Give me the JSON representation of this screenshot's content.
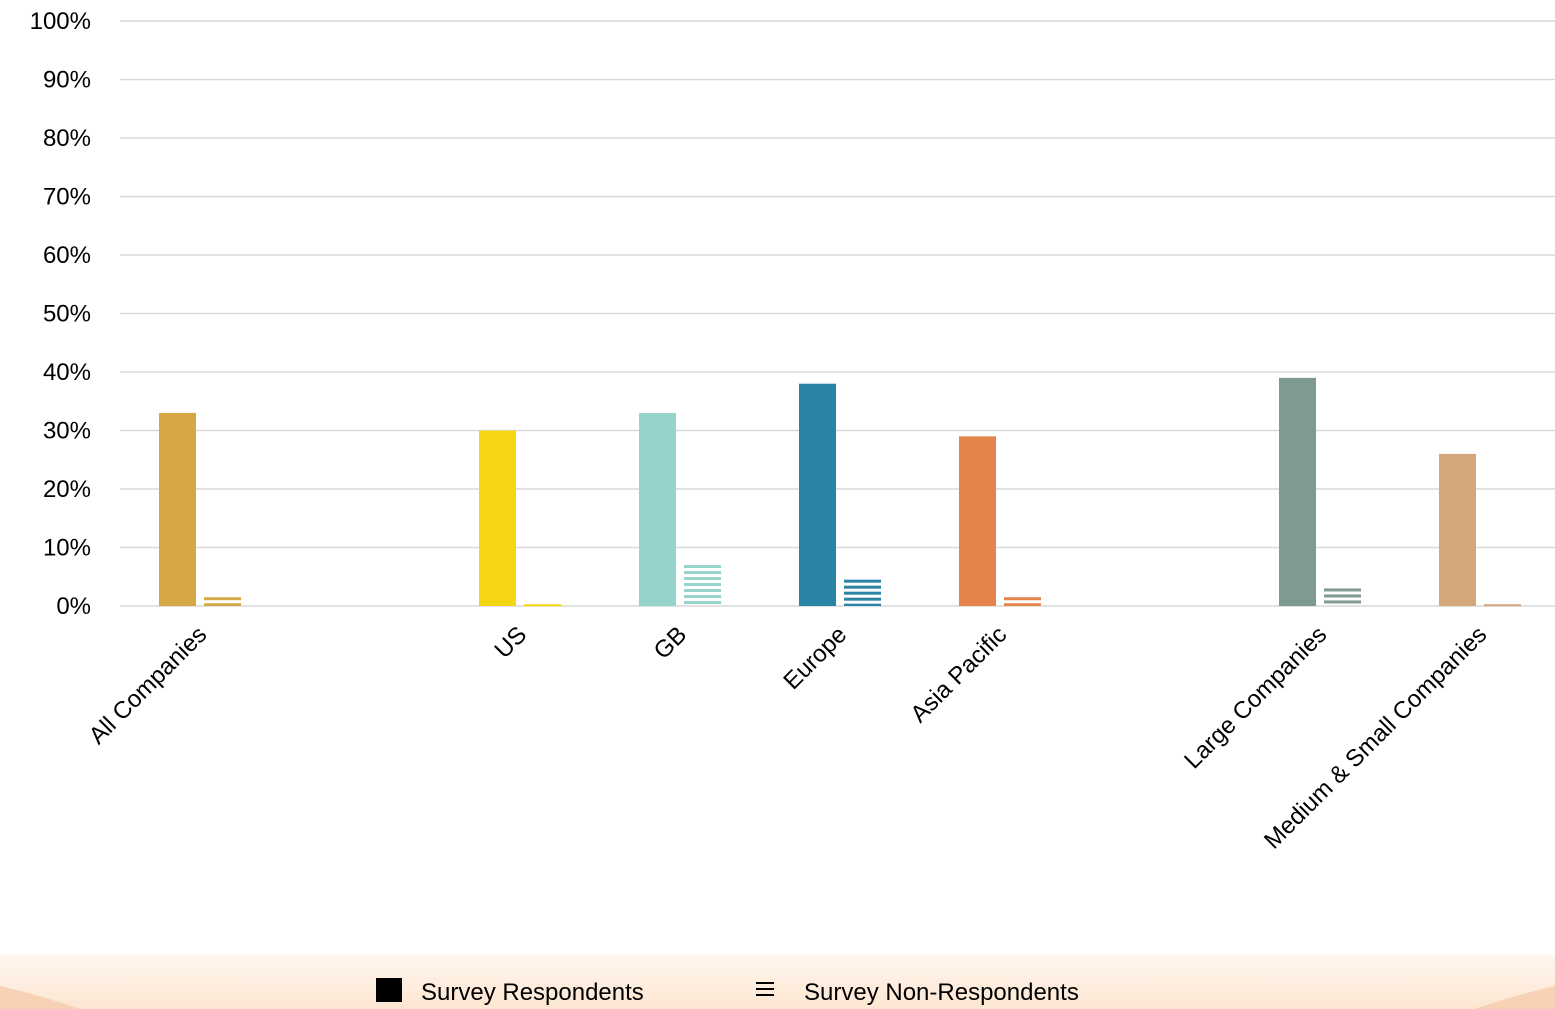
{
  "chart_data": {
    "type": "bar",
    "title": "",
    "xlabel": "",
    "ylabel": "",
    "ylim": [
      0,
      100
    ],
    "yticks": [
      "0%",
      "10%",
      "20%",
      "30%",
      "40%",
      "50%",
      "60%",
      "70%",
      "80%",
      "90%",
      "100%"
    ],
    "grid": "horizontal",
    "legend_position": "bottom",
    "categories": [
      "All Companies",
      "US",
      "GB",
      "Europe",
      "Asia Pacific",
      "Large Companies",
      "Medium & Small Companies"
    ],
    "category_colors": [
      "#d6a843",
      "#f5d615",
      "#95d3cb",
      "#2b84a6",
      "#e5844a",
      "#7f9993",
      "#d4a77b"
    ],
    "series": [
      {
        "name": "Survey Respondents",
        "style": "solid",
        "values": [
          33,
          30,
          33,
          38,
          29,
          39,
          26
        ]
      },
      {
        "name": "Survey Non-Respondents",
        "style": "striped",
        "values": [
          1.5,
          0.3,
          7,
          4.5,
          1.5,
          3,
          0.3
        ]
      }
    ]
  },
  "colors": {
    "gridline": "#d9d9d9",
    "legend_band": "#fdecde"
  }
}
